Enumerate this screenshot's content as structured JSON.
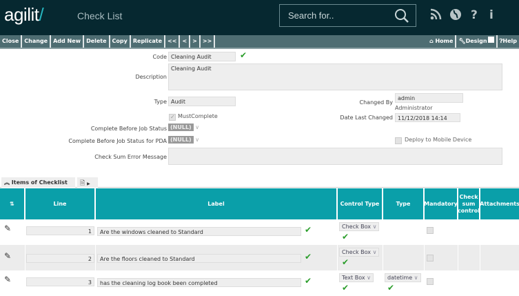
{
  "header": {
    "logo": "agilit",
    "logo_slash": "/",
    "title": "Check List",
    "search_placeholder": "Search for..",
    "icons": [
      "rss-icon",
      "globe-icon",
      "question-icon",
      "info-icon"
    ]
  },
  "toolbar": {
    "left": [
      "Close",
      "Change",
      "Add New",
      "Delete",
      "Copy",
      "Replicate",
      "<<",
      "<",
      ">",
      ">>"
    ],
    "home": "Home",
    "design": "Design",
    "help": "Help"
  },
  "form": {
    "code_label": "Code",
    "code": "Cleaning Audit",
    "description_label": "Description",
    "description": "Cleaning Audit",
    "type_label": "Type",
    "type": "Audit",
    "must_complete_label": "MustComplete",
    "must_complete": true,
    "cbjs_label": "Complete Before Job Status",
    "cbjs": "(NULL)",
    "cbjs_pda_label": "Complete Before Job Status for PDA",
    "cbjs_pda": "(NULL)",
    "csem_label": "Check Sum Error Message",
    "csem": "",
    "changed_by_label": "Changed By",
    "changed_by": "admin",
    "changed_by_name": "Administrator",
    "date_label": "Date Last Changed",
    "date": "11/12/2018 14:14",
    "deploy_label": "Deploy to Mobile Device",
    "deploy": false
  },
  "items": {
    "tab_label": "Items of Checklist",
    "columns": [
      "Line",
      "Label",
      "Control Type",
      "Type",
      "Mandatory",
      "Check sum control",
      "Attachments"
    ],
    "rows": [
      {
        "line": "1",
        "label": "Are the windows cleaned to Standard",
        "control_type": "Check Box",
        "type": "",
        "mandatory": false
      },
      {
        "line": "2",
        "label": "Are the floors cleaned to Standard",
        "control_type": "Check Box",
        "type": "",
        "mandatory": false
      },
      {
        "line": "3",
        "label": "has the cleaning log book been completed",
        "control_type": "Text Box",
        "type": "datetime",
        "mandatory": false
      }
    ]
  },
  "colors": {
    "header": "#062830",
    "toolbar": "#4e6d72",
    "table_header": "#0a9fa9",
    "check": "#2a9d2a"
  }
}
